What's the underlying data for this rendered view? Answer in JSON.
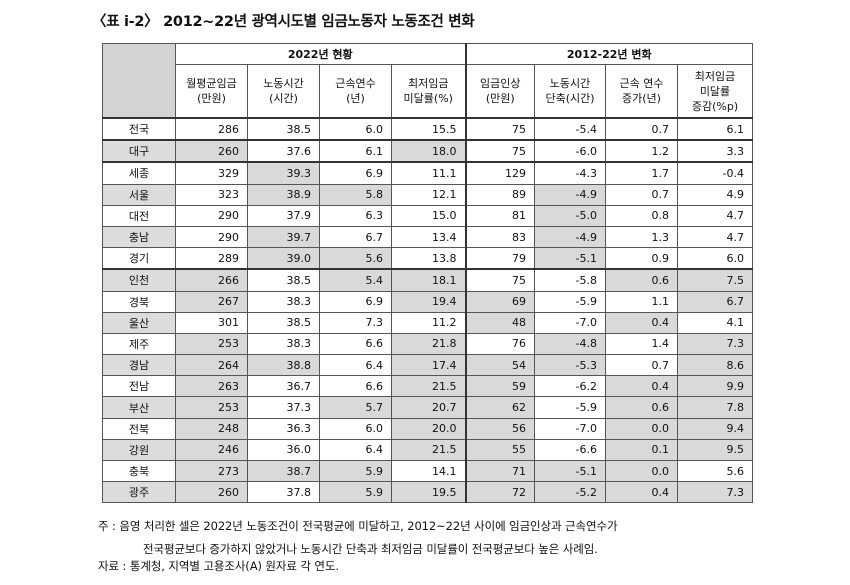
{
  "title": "〈표 ⅰ-2〉 2012~22년 광역시도별 임금노동자 노동조건 변화",
  "groups": [
    "2022년 현황",
    "2012-22년 변화"
  ],
  "columns": [
    "월평균임금\n(만원)",
    "노동시간\n(시간)",
    "근속연수\n(년)",
    "최저임금\n미달률(%)",
    "임금인상\n(만원)",
    "노동시간\n단축(시간)",
    "근속 연수\n증가(년)",
    "최저임금\n미달률\n증감(%p)"
  ],
  "rows": [
    {
      "region": "전국",
      "values": [
        "286",
        "38.5",
        "6.0",
        "15.5",
        "75",
        "-5.4",
        "0.7",
        "6.1"
      ],
      "hl": []
    },
    {
      "region": "대구",
      "values": [
        "260",
        "37.6",
        "6.1",
        "18.0",
        "75",
        "-6.0",
        "1.2",
        "3.3"
      ],
      "hl": [
        0,
        3
      ]
    },
    {
      "region": "세종",
      "values": [
        "329",
        "39.3",
        "6.9",
        "11.1",
        "129",
        "-4.3",
        "1.7",
        "-0.4"
      ],
      "hl": [
        1
      ]
    },
    {
      "region": "서울",
      "values": [
        "323",
        "38.9",
        "5.8",
        "12.1",
        "89",
        "-4.9",
        "0.7",
        "4.9"
      ],
      "hl": [
        1,
        2,
        5
      ]
    },
    {
      "region": "대전",
      "values": [
        "290",
        "37.9",
        "6.3",
        "15.0",
        "81",
        "-5.0",
        "0.8",
        "4.7"
      ],
      "hl": [
        5
      ]
    },
    {
      "region": "충남",
      "values": [
        "290",
        "39.7",
        "6.7",
        "13.4",
        "83",
        "-4.9",
        "1.3",
        "4.7"
      ],
      "hl": [
        1,
        5
      ]
    },
    {
      "region": "경기",
      "values": [
        "289",
        "39.0",
        "5.6",
        "13.8",
        "79",
        "-5.1",
        "0.9",
        "6.0"
      ],
      "hl": [
        1,
        2,
        5
      ]
    },
    {
      "region": "인천",
      "values": [
        "266",
        "38.5",
        "5.4",
        "18.1",
        "75",
        "-5.8",
        "0.6",
        "7.5"
      ],
      "hl": [
        0,
        2,
        3,
        6,
        7
      ]
    },
    {
      "region": "경북",
      "values": [
        "267",
        "38.3",
        "6.9",
        "19.4",
        "69",
        "-5.9",
        "1.1",
        "6.7"
      ],
      "hl": [
        0,
        3,
        4,
        7
      ]
    },
    {
      "region": "울산",
      "values": [
        "301",
        "38.5",
        "7.3",
        "11.2",
        "48",
        "-7.0",
        "0.4",
        "4.1"
      ],
      "hl": [
        4,
        6
      ]
    },
    {
      "region": "제주",
      "values": [
        "253",
        "38.3",
        "6.6",
        "21.8",
        "76",
        "-4.8",
        "1.4",
        "7.3"
      ],
      "hl": [
        0,
        3,
        5,
        7
      ]
    },
    {
      "region": "경남",
      "values": [
        "264",
        "38.8",
        "6.4",
        "17.4",
        "54",
        "-5.3",
        "0.7",
        "8.6"
      ],
      "hl": [
        0,
        1,
        3,
        4,
        5,
        7
      ]
    },
    {
      "region": "전남",
      "values": [
        "263",
        "36.7",
        "6.6",
        "21.5",
        "59",
        "-6.2",
        "0.4",
        "9.9"
      ],
      "hl": [
        0,
        3,
        4,
        6,
        7
      ]
    },
    {
      "region": "부산",
      "values": [
        "253",
        "37.3",
        "5.7",
        "20.7",
        "62",
        "-5.9",
        "0.6",
        "7.8"
      ],
      "hl": [
        0,
        2,
        3,
        4,
        6,
        7
      ]
    },
    {
      "region": "전북",
      "values": [
        "248",
        "36.3",
        "6.0",
        "20.0",
        "56",
        "-7.0",
        "0.0",
        "9.4"
      ],
      "hl": [
        0,
        3,
        4,
        6,
        7
      ]
    },
    {
      "region": "강원",
      "values": [
        "246",
        "36.0",
        "6.4",
        "21.5",
        "55",
        "-6.6",
        "0.1",
        "9.5"
      ],
      "hl": [
        0,
        3,
        4,
        6,
        7
      ]
    },
    {
      "region": "충북",
      "values": [
        "273",
        "38.7",
        "5.9",
        "14.1",
        "71",
        "-5.1",
        "0.0",
        "5.6"
      ],
      "hl": [
        0,
        1,
        2,
        4,
        5,
        6
      ]
    },
    {
      "region": "광주",
      "values": [
        "260",
        "37.8",
        "5.9",
        "19.5",
        "72",
        "-5.2",
        "0.4",
        "7.3"
      ],
      "hl": [
        0,
        2,
        3,
        4,
        5,
        6,
        7
      ]
    }
  ],
  "notes": {
    "note1": "주 : 음영 처리한 셀은 2022년 노동조건이 전국평균에 미달하고, 2012~22년 사이에 임금인상과 근속연수가",
    "note2": "전국평균보다 증가하지 않았거나 노동시간 단축과 최저임금 미달률이 전국평균보다 높은 사례임.",
    "note3": "자료 : 통계청, 지역별 고용조사(A) 원자료 각 연도."
  }
}
